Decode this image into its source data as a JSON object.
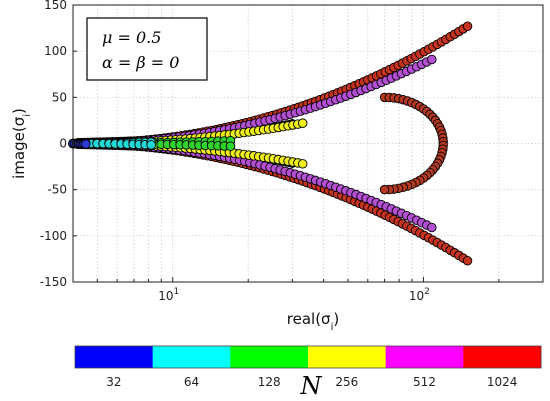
{
  "chart_data": {
    "type": "scatter",
    "xlabel": "real(σ",
    "xlabel_sub": "i",
    "xlabel_close": ")",
    "ylabel": "image(σ",
    "ylabel_sub": "i",
    "ylabel_close": ")",
    "xscale": "log",
    "xlim": [
      4,
      300
    ],
    "ylim": [
      -150,
      150
    ],
    "grid": true,
    "x_ticks": [
      {
        "value": 10,
        "base": "10",
        "exp": "1"
      },
      {
        "value": 100,
        "base": "10",
        "exp": "2"
      }
    ],
    "y_ticks": [
      150,
      100,
      50,
      0,
      -50,
      -100,
      -150
    ],
    "legend_lines": [
      "μ = 0.5",
      "α = β = 0"
    ],
    "legend_position": "top-left",
    "colorbar": {
      "title": "N",
      "levels": [
        {
          "label": "32",
          "color": "#0000ff"
        },
        {
          "label": "64",
          "color": "#00ffff"
        },
        {
          "label": "128",
          "color": "#00ff00"
        },
        {
          "label": "256",
          "color": "#ffff00"
        },
        {
          "label": "512",
          "color": "#ff00ff"
        },
        {
          "label": "1024",
          "color": "#ff0000"
        }
      ]
    },
    "series": [
      {
        "N": 1024,
        "color": "#c8331f",
        "x_max": 150,
        "y_max": 127,
        "x_min": 4.0,
        "count": 92
      },
      {
        "N": 512,
        "color": "#b44fd4",
        "x_max": 108,
        "y_max": 91,
        "x_min": 4.0,
        "count": 72
      },
      {
        "N": 256,
        "color": "#eeee1c",
        "x_max": 33,
        "y_max": 22,
        "x_min": 4.0,
        "count": 48
      },
      {
        "N": 128,
        "color": "#2cd52c",
        "x_max": 17,
        "y_max": 3,
        "x_min": 4.0,
        "count": 26
      },
      {
        "N": 64,
        "color": "#20d8d8",
        "x_max": 8.2,
        "y_max": 1.5,
        "x_min": 4.0,
        "count": 14
      },
      {
        "N": 32,
        "color": "#2b3bd8",
        "x_max": 4.5,
        "y_max": 0.6,
        "x_min": 4.0,
        "count": 8
      }
    ],
    "loop": {
      "N": 1024,
      "color": "#b5381f",
      "tip_x": 70,
      "tip_y": 0,
      "peak_x": 100,
      "peak_y": 50,
      "count": 40
    }
  }
}
